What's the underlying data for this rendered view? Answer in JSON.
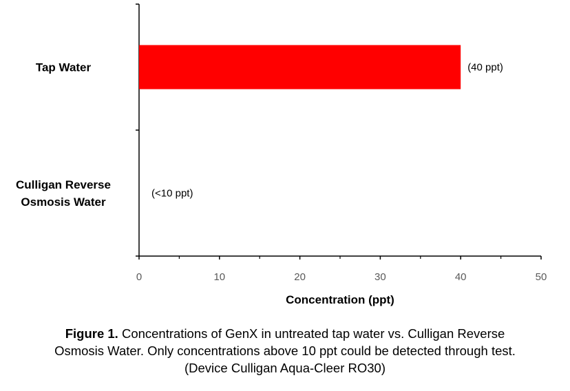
{
  "chart_data": {
    "type": "bar",
    "orientation": "horizontal",
    "categories": [
      "Tap Water",
      "Culligan Reverse Osmosis Water"
    ],
    "category_lines": [
      [
        "Tap Water"
      ],
      [
        "Culligan Reverse",
        "Osmosis Water"
      ]
    ],
    "values": [
      40,
      0
    ],
    "data_labels": [
      "(40 ppt)",
      "(<10 ppt)"
    ],
    "bar_color": "#ff0000",
    "xlabel": "Concentration (ppt)",
    "ylabel": "",
    "xlim": [
      0,
      50
    ],
    "xticks": [
      0,
      10,
      20,
      30,
      40,
      50
    ],
    "grid": false,
    "legend": "none"
  },
  "caption": {
    "figure_number": "Figure 1.",
    "line1": " Concentrations of GenX in untreated tap water vs. Culligan Reverse",
    "line2": "Osmosis Water.  Only concentrations above 10 ppt could be detected through test.",
    "line3": "(Device Culligan Aqua-Cleer RO30)"
  }
}
